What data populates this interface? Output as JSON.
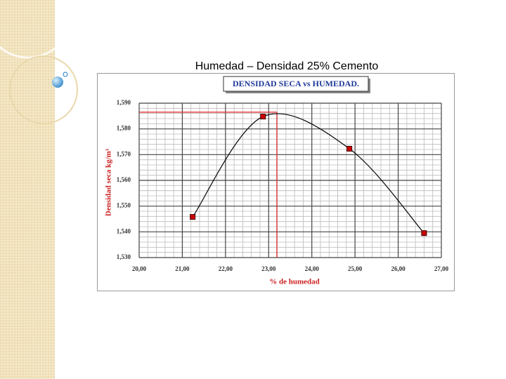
{
  "slide_title": "Humedad – Densidad 25% Cemento",
  "chart_data": {
    "type": "line",
    "title": "DENSIDAD SECA vs HUMEDAD.",
    "x_label": "% de humedad",
    "y_label": "Densidad seca kg/m³",
    "x": [
      21.24,
      22.87,
      24.87,
      26.6
    ],
    "series": [
      {
        "name": "Densidad seca",
        "color": "#cc0000",
        "line_color": "#000000",
        "values": [
          1545.8,
          1584.8,
          1572.3,
          1539.5
        ]
      }
    ],
    "optimum": {
      "x": 23.19,
      "y": 1586.5,
      "color": "#e03030"
    },
    "xlim": [
      20,
      27
    ],
    "xticks": [
      {
        "value": 20,
        "label": "20,00"
      },
      {
        "value": 21,
        "label": "21,00"
      },
      {
        "value": 22,
        "label": "22,00"
      },
      {
        "value": 23,
        "label": "23,00"
      },
      {
        "value": 24,
        "label": "24,00"
      },
      {
        "value": 25,
        "label": "25,00"
      },
      {
        "value": 26,
        "label": "26,00"
      },
      {
        "value": 27,
        "label": "27,00"
      }
    ],
    "ylim": [
      1530,
      1590
    ],
    "yticks": [
      {
        "value": 1530,
        "label": "1,530"
      },
      {
        "value": 1540,
        "label": "1,540"
      },
      {
        "value": 1550,
        "label": "1,550"
      },
      {
        "value": 1560,
        "label": "1,560"
      },
      {
        "value": 1570,
        "label": "1,570"
      },
      {
        "value": 1580,
        "label": "1,580"
      },
      {
        "value": 1590,
        "label": "1,590"
      }
    ],
    "grid": true
  }
}
